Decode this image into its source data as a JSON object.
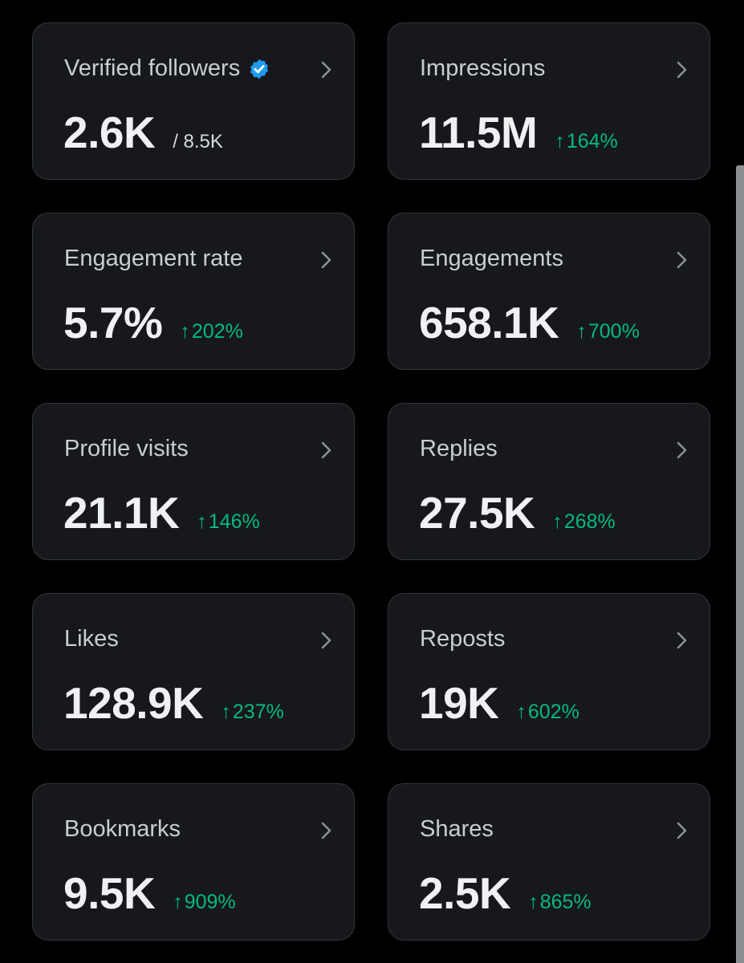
{
  "cards": [
    {
      "label": "Verified followers",
      "value": "2.6K",
      "total": "/ 8.5K",
      "change": "",
      "verified_icon": "verified-badge-icon"
    },
    {
      "label": "Impressions",
      "value": "11.5M",
      "change": "164%"
    },
    {
      "label": "Engagement rate",
      "value": "5.7%",
      "change": "202%"
    },
    {
      "label": "Engagements",
      "value": "658.1K",
      "change": "700%"
    },
    {
      "label": "Profile visits",
      "value": "21.1K",
      "change": "146%"
    },
    {
      "label": "Replies",
      "value": "27.5K",
      "change": "268%"
    },
    {
      "label": "Likes",
      "value": "128.9K",
      "change": "237%"
    },
    {
      "label": "Reposts",
      "value": "19K",
      "change": "602%"
    },
    {
      "label": "Bookmarks",
      "value": "9.5K",
      "change": "909%"
    },
    {
      "label": "Shares",
      "value": "2.5K",
      "change": "865%"
    }
  ],
  "arrow_glyph": "↑",
  "colors": {
    "background": "#000000",
    "card": "#16181c",
    "positive": "#00ba7c",
    "verified": "#1d9bf0"
  }
}
